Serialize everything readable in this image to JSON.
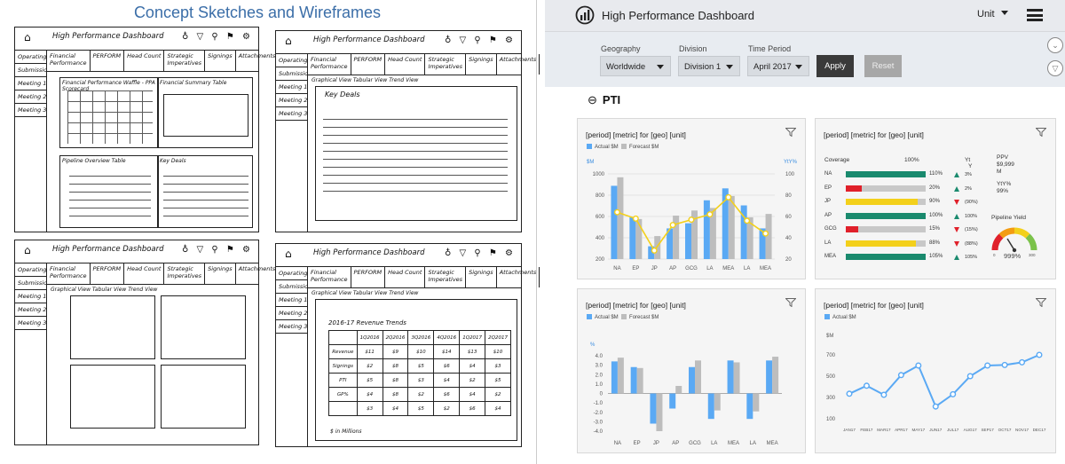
{
  "left_panel": {
    "title": "Concept Sketches and Wireframes",
    "sketch": {
      "app_title": "High Performance Dashboard",
      "icons": "♁ ▽ ⚲ ⚑ ⚙",
      "tabs": [
        "Financial\nPerformance",
        "PERFORM",
        "Head Count",
        "Strategic\nImperatives",
        "Signings",
        "Attachments"
      ],
      "sidebar": [
        "Operating Team",
        "Submissions",
        "Meeting 1",
        "Meeting 2",
        "Meeting 3"
      ],
      "s1_box1": "Financial Performance Waffle - PPA Scorecard",
      "s1_box2": "Financial Summary Table",
      "s1_box3": "Pipeline Overview Table",
      "s1_box4": "Key Deals",
      "views": "Graphical View  Tabular View  Trend View",
      "s2_box": "Key Deals",
      "s4_box": "2016-17 Revenue Trends",
      "s4_cols": [
        "",
        "1Q2016",
        "2Q2016",
        "3Q2016",
        "4Q2016",
        "1Q2017",
        "2Q2017"
      ],
      "s4_rows": [
        [
          "Revenue",
          "$11",
          "$9",
          "$10",
          "$14",
          "$13",
          "$10"
        ],
        [
          "Signings",
          "$2",
          "$8",
          "$5",
          "$6",
          "$4",
          "$3"
        ],
        [
          "PTI",
          "$5",
          "$8",
          "$3",
          "$4",
          "$2",
          "$5"
        ],
        [
          "GP%",
          "$4",
          "$8",
          "$2",
          "$6",
          "$4",
          "$2"
        ],
        [
          "",
          "$3",
          "$4",
          "$5",
          "$2",
          "$6",
          "$4"
        ]
      ],
      "s4_note": "$ in Millions"
    }
  },
  "header": {
    "title": "High Performance Dashboard",
    "unit_label": "Unit"
  },
  "filters": {
    "geography_label": "Geography",
    "geography_value": "Worldwide",
    "division_label": "Division",
    "division_value": "Division 1",
    "period_label": "Time Period",
    "period_value": "April 2017",
    "apply_label": "Apply",
    "reset_label": "Reset"
  },
  "section": {
    "toggle": "⊖",
    "title": "PTI"
  },
  "colors": {
    "actual": "#5aa9f4",
    "forecast": "#bdbdbd",
    "line": "#f3d01b",
    "green": "#1a8a6e",
    "red": "#e0202a",
    "yellow": "#f3d01b"
  },
  "cards": [
    {
      "title": "[period] [metric] for [geo] [unit]",
      "legend_actual": "Actual $M",
      "legend_forecast": "Forecast $M"
    },
    {
      "title": "[period] [metric] for [geo] [unit]"
    },
    {
      "title": "[period] [metric] for [geo] [unit]",
      "legend_actual": "Actual $M",
      "legend_forecast": "Forecast $M"
    },
    {
      "title": "[period] [metric] for [geo] [unit]",
      "legend_actual": "Actual $M"
    }
  ],
  "coverage": {
    "header_coverage": "Coverage",
    "header_100": "100%",
    "header_yt": "Yt",
    "header_y": "Y",
    "ppv_label": "PPV",
    "ppv_value": "$9,999",
    "ppv_unit": "M",
    "yty_label": "YtY%",
    "yty_value": "99%",
    "pipeline_label": "Pipeline Yield",
    "pipeline_value": "999%",
    "gauge_min": "0",
    "gauge_max": "300",
    "rows": [
      {
        "label": "NA",
        "pct": "110%",
        "dir": "up",
        "chg": "3%",
        "fill": 1.0,
        "color": "green"
      },
      {
        "label": "EP",
        "pct": "20%",
        "dir": "up",
        "chg": "2%",
        "fill": 0.2,
        "color": "red"
      },
      {
        "label": "JP",
        "pct": "90%",
        "dir": "down",
        "chg": "(90%)",
        "fill": 0.9,
        "color": "yellow"
      },
      {
        "label": "AP",
        "pct": "100%",
        "dir": "up",
        "chg": "100%",
        "fill": 1.0,
        "color": "green"
      },
      {
        "label": "GCG",
        "pct": "15%",
        "dir": "down",
        "chg": "(15%)",
        "fill": 0.15,
        "color": "red"
      },
      {
        "label": "LA",
        "pct": "88%",
        "dir": "down",
        "chg": "(88%)",
        "fill": 0.88,
        "color": "yellow"
      },
      {
        "label": "MEA",
        "pct": "105%",
        "dir": "up",
        "chg": "105%",
        "fill": 1.0,
        "color": "green"
      }
    ]
  },
  "chart_data": [
    {
      "type": "bar",
      "categories": [
        "NA",
        "EP",
        "JP",
        "AP",
        "GCG",
        "LA",
        "MEA",
        "LA",
        "MEA"
      ],
      "ylabel": "$M",
      "y2label": "YtY%",
      "ylim": [
        0,
        1000
      ],
      "y2lim": [
        20,
        100
      ],
      "yticks": [
        "1000",
        "800",
        "600",
        "400",
        "200"
      ],
      "y2ticks": [
        "100",
        "80",
        "60",
        "40",
        "20"
      ],
      "series": [
        {
          "name": "Actual $M",
          "values": [
            860,
            490,
            150,
            360,
            420,
            690,
            830,
            630,
            360
          ]
        },
        {
          "name": "Forecast $M",
          "values": [
            960,
            470,
            270,
            510,
            570,
            600,
            740,
            490,
            530
          ]
        },
        {
          "name": "YtY%",
          "type": "line",
          "values": [
            64,
            58,
            28,
            52,
            57,
            62,
            78,
            56,
            44
          ]
        }
      ]
    },
    {
      "type": "bar",
      "categories": [
        "NA",
        "EP",
        "JP",
        "AP",
        "GCG",
        "LA",
        "MEA",
        "LA",
        "MEA"
      ],
      "ylabel": "%",
      "ylim": [
        -4.0,
        4.0
      ],
      "yticks": [
        "4.0",
        "3.0",
        "2.0",
        "1.0",
        "0",
        "-1.0",
        "-2.0",
        "-3.0",
        "-4.0"
      ],
      "series": [
        {
          "name": "Actual $M",
          "values": [
            3.4,
            2.8,
            -3.2,
            -1.6,
            2.8,
            -2.7,
            3.5,
            -2.7,
            3.5
          ]
        },
        {
          "name": "Forecast $M",
          "values": [
            3.8,
            2.7,
            -4.0,
            0.8,
            3.5,
            -1.8,
            3.3,
            -1.9,
            3.9
          ]
        }
      ]
    },
    {
      "type": "line",
      "categories": [
        "JAN17",
        "FEB17",
        "MAR17",
        "APR17",
        "MAY17",
        "JUN17",
        "JUL17",
        "AUG17",
        "SEP17",
        "OCT17",
        "NOV17",
        "DEC17"
      ],
      "ylabel": "$M",
      "ylim": [
        100,
        800
      ],
      "yticks": [
        "700",
        "500",
        "300",
        "100"
      ],
      "series": [
        {
          "name": "Actual $M",
          "values": [
            335,
            410,
            325,
            510,
            600,
            215,
            330,
            500,
            600,
            605,
            630,
            700
          ]
        }
      ]
    }
  ]
}
